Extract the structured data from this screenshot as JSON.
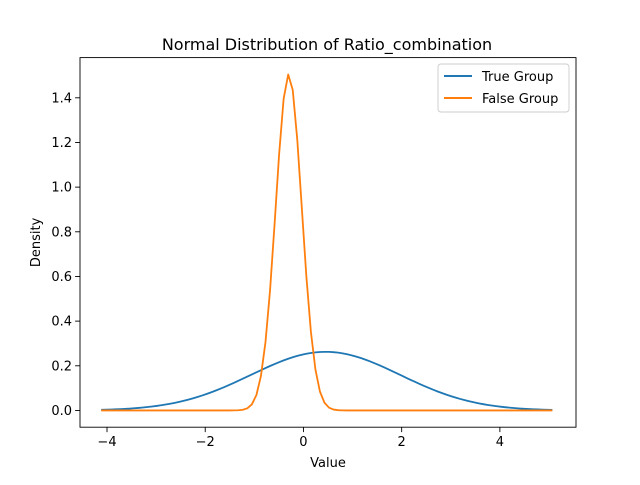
{
  "chart_data": {
    "type": "line",
    "title": "Normal Distribution of Ratio_combination",
    "xlabel": "Value",
    "ylabel": "Density",
    "xlim": [
      -4.55,
      5.55
    ],
    "ylim": [
      -0.075,
      1.58
    ],
    "xticks": [
      -4,
      -2,
      0,
      2,
      4
    ],
    "xtick_labels": [
      "−4",
      "−2",
      "0",
      "2",
      "4"
    ],
    "yticks": [
      0.0,
      0.2,
      0.4,
      0.6,
      0.8,
      1.0,
      1.2,
      1.4
    ],
    "ytick_labels": [
      "0.0",
      "0.2",
      "0.4",
      "0.6",
      "0.8",
      "1.0",
      "1.2",
      "1.4"
    ],
    "grid": false,
    "legend": {
      "position": "top-right"
    },
    "series": [
      {
        "name": "True Group",
        "color": "#1f77b4",
        "distribution": {
          "kind": "normal",
          "mean": 0.45,
          "std": 1.52
        },
        "x_range": [
          -4.1,
          5.05
        ],
        "num_points": 100
      },
      {
        "name": "False Group",
        "color": "#ff7f0e",
        "distribution": {
          "kind": "normal",
          "mean": -0.3,
          "std": 0.265
        },
        "x_range": [
          -4.1,
          5.05
        ],
        "num_points": 100
      }
    ]
  }
}
